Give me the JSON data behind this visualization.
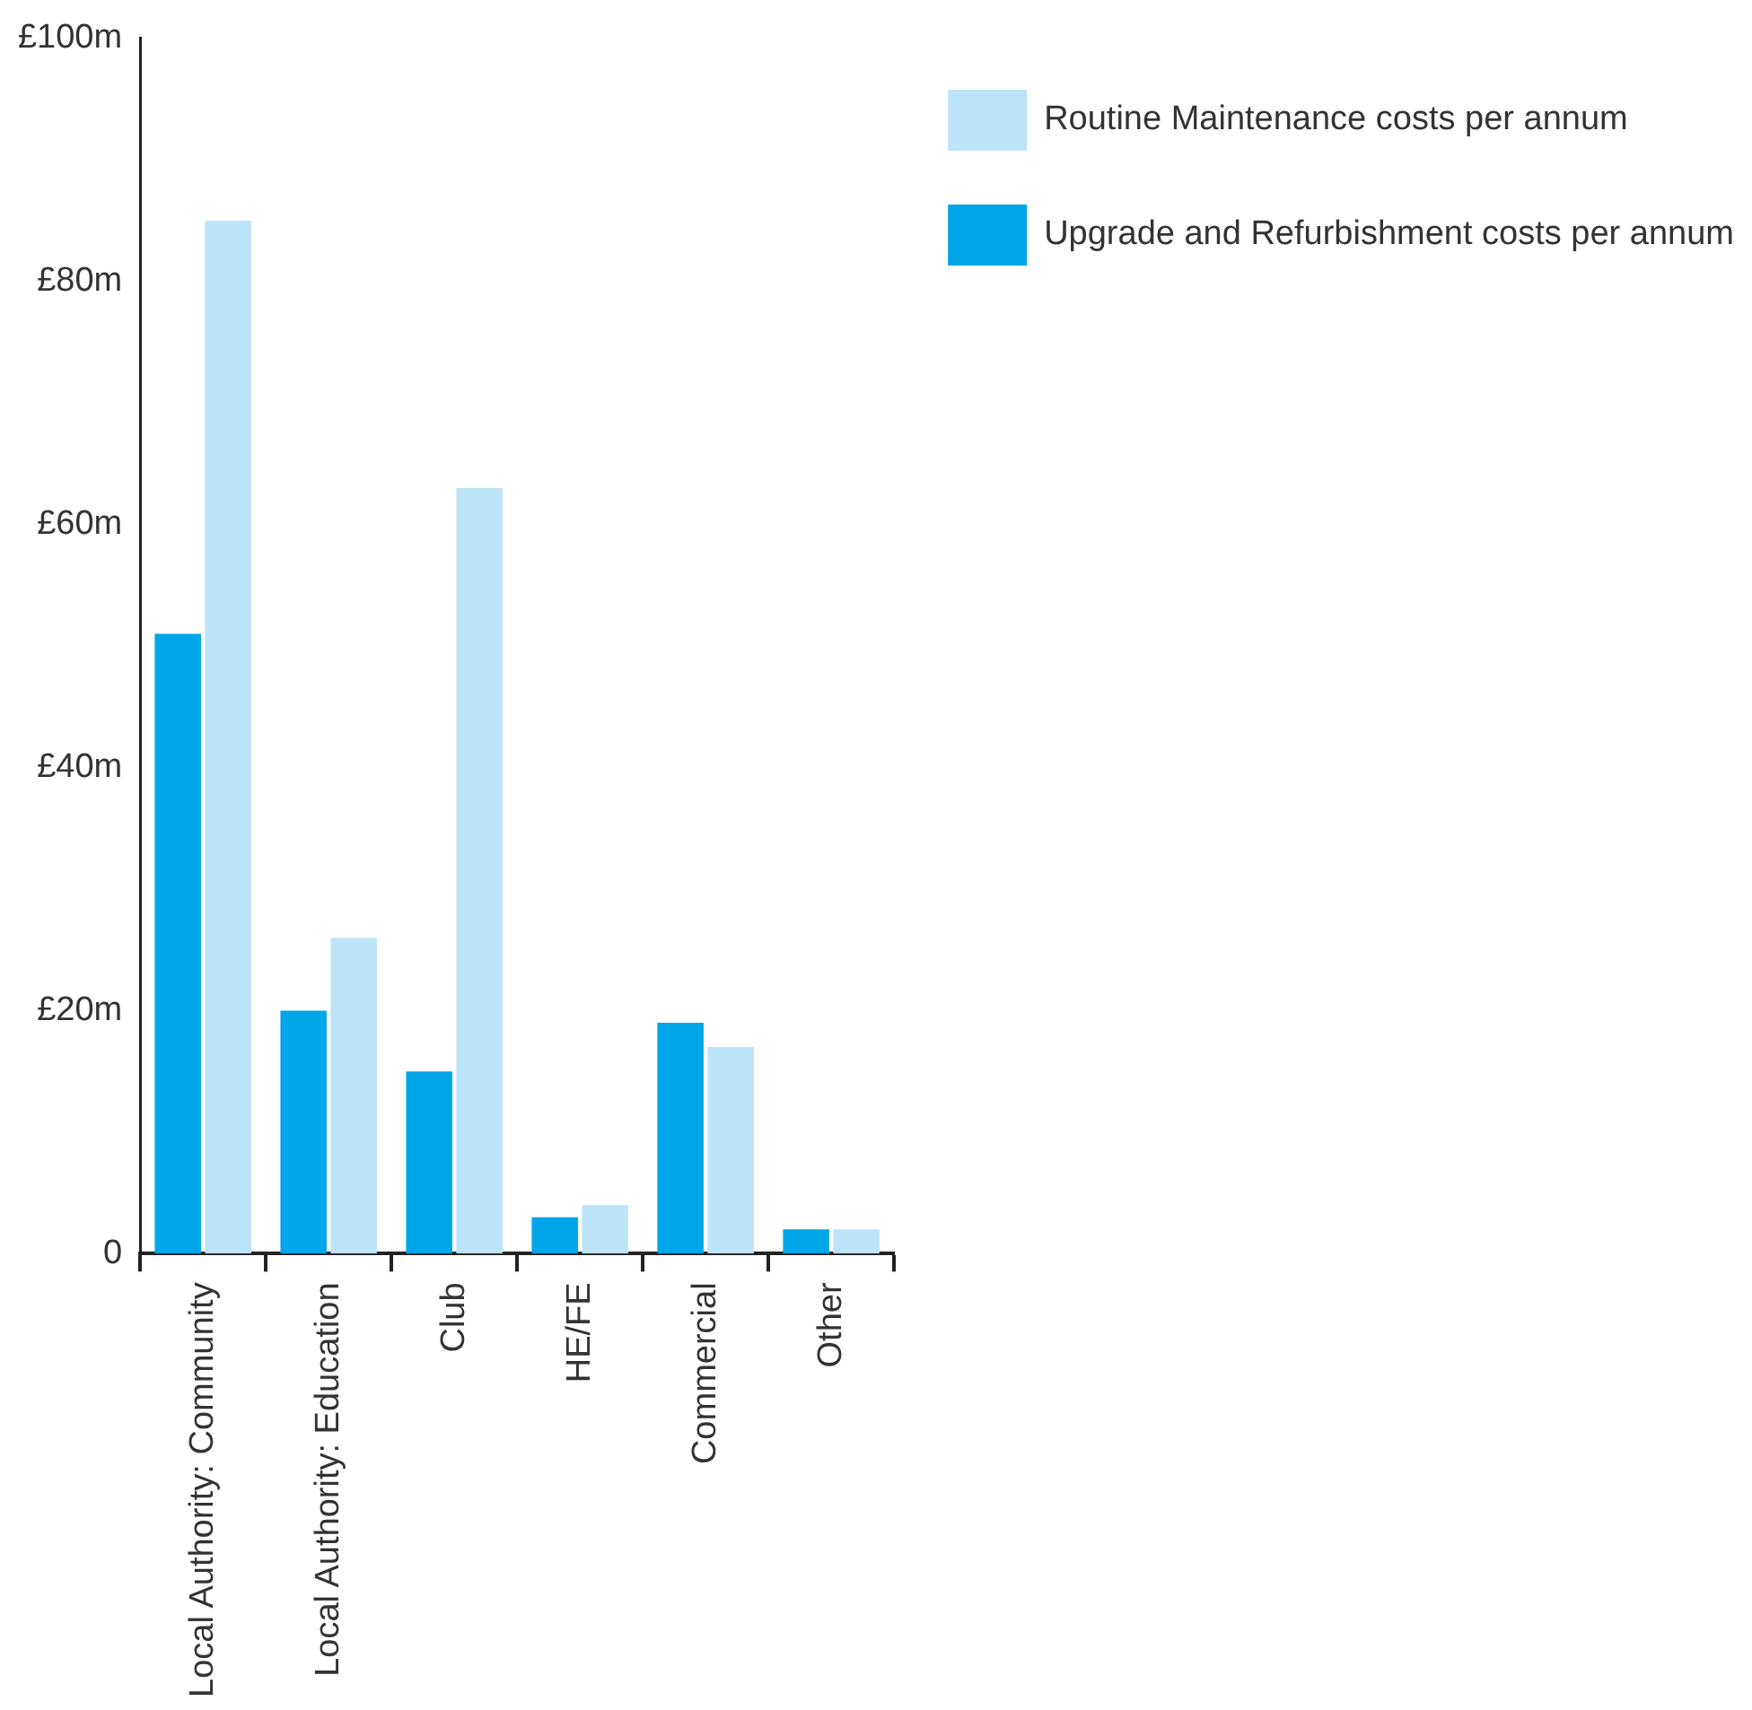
{
  "chart_data": {
    "type": "bar",
    "categories": [
      "Local Authority: Community",
      "Local Authority: Education",
      "Club",
      "HE/FE",
      "Commercial",
      "Other"
    ],
    "series": [
      {
        "name": "Upgrade and Refurbishment costs per annum",
        "color": "#00a6e8",
        "values": [
          51,
          20,
          15,
          3,
          19,
          2
        ]
      },
      {
        "name": "Routine Maintenance costs per annum",
        "color": "#bce4f8",
        "values": [
          85,
          26,
          63,
          4,
          17,
          2
        ]
      }
    ],
    "ylim": [
      0,
      100
    ],
    "yticks": [
      0,
      {
        "value": 20,
        "label": "£20m"
      },
      {
        "value": 40,
        "label": "£40m"
      },
      {
        "value": 60,
        "label": "£60m"
      },
      {
        "value": 80,
        "label": "£80m"
      },
      {
        "value": 100,
        "label": "£100m"
      }
    ],
    "grid": false,
    "legend": "top right"
  }
}
